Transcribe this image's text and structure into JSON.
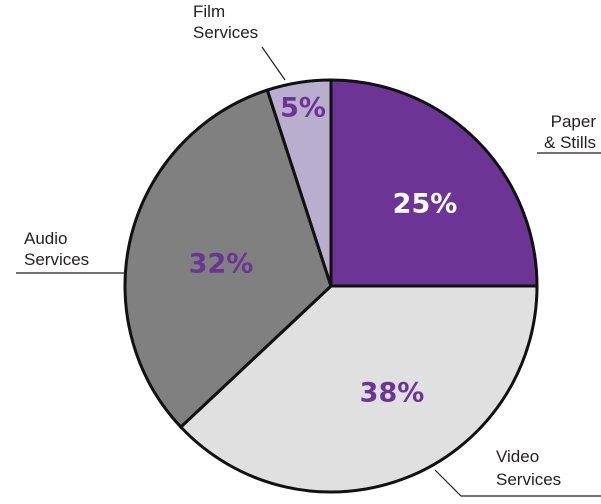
{
  "chart_data": {
    "type": "pie",
    "title": "",
    "slices": [
      {
        "label": [
          "Paper",
          "& Stills"
        ],
        "value": 25,
        "value_label": "25%",
        "color": "#6c3494",
        "text_color": "#ffffff"
      },
      {
        "label": [
          "Video",
          "Services"
        ],
        "value": 38,
        "value_label": "38%",
        "color": "#e0e0e0",
        "text_color": "#6c3494"
      },
      {
        "label": [
          "Audio",
          "Services"
        ],
        "value": 32,
        "value_label": "32%",
        "color": "#808080",
        "text_color": "#6c3494"
      },
      {
        "label": [
          "Film",
          "Services"
        ],
        "value": 5,
        "value_label": "5%",
        "color": "#b9aecd",
        "text_color": "#6c3494"
      }
    ],
    "legend": "none",
    "colors": {
      "outline": "#111111",
      "leader_line": "#231f20"
    }
  }
}
